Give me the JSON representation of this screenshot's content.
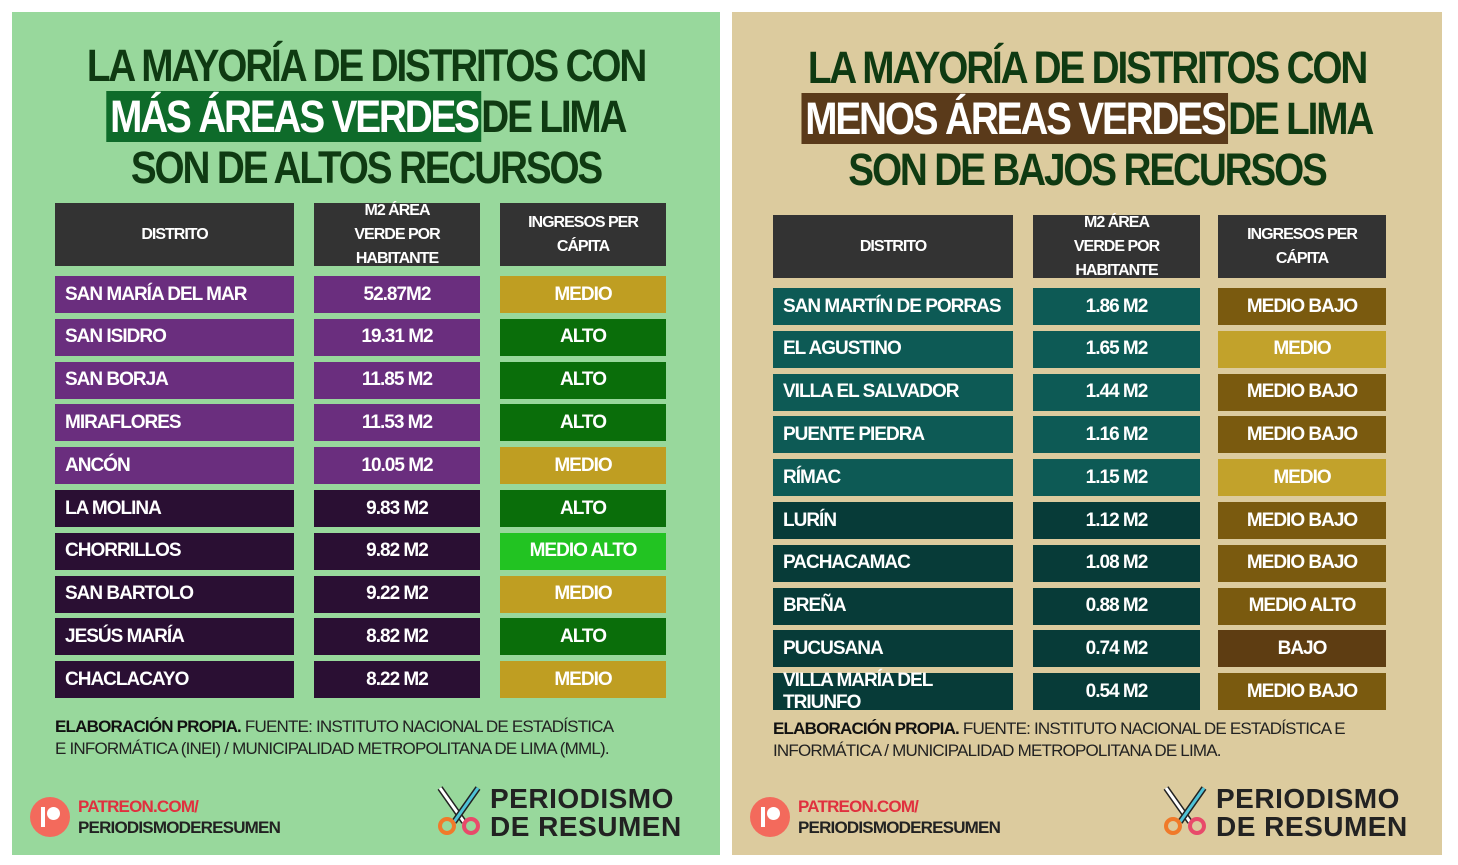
{
  "left": {
    "title_line1": "LA MAYORÍA DE DISTRITOS CON",
    "title_highlight": "MÁS ÁREAS VERDES",
    "title_line2_rest": "DE LIMA",
    "title_line3": "SON DE ALTOS RECURSOS",
    "headers": [
      "DISTRITO",
      "M2 ÁREA VERDE POR HABITANTE",
      "INGRESOS PER CÁPITA"
    ],
    "rows": [
      {
        "distrito": "SAN MARÍA DEL MAR",
        "m2": "52.87M2",
        "ingreso": "MEDIO"
      },
      {
        "distrito": "SAN ISIDRO",
        "m2": "19.31 M2",
        "ingreso": "ALTO"
      },
      {
        "distrito": "SAN BORJA",
        "m2": "11.85 M2",
        "ingreso": "ALTO"
      },
      {
        "distrito": "MIRAFLORES",
        "m2": "11.53 M2",
        "ingreso": "ALTO"
      },
      {
        "distrito": "ANCÓN",
        "m2": "10.05 M2",
        "ingreso": "MEDIO"
      },
      {
        "distrito": "LA MOLINA",
        "m2": "9.83 M2",
        "ingreso": "ALTO"
      },
      {
        "distrito": "CHORRILLOS",
        "m2": "9.82 M2",
        "ingreso": "MEDIO ALTO"
      },
      {
        "distrito": "SAN BARTOLO",
        "m2": "9.22 M2",
        "ingreso": "MEDIO"
      },
      {
        "distrito": "JESÚS MARÍA",
        "m2": "8.82 M2",
        "ingreso": "ALTO"
      },
      {
        "distrito": "CHACLACAYO",
        "m2": "8.22 M2",
        "ingreso": "MEDIO"
      }
    ],
    "note_bold": "ELABORACIÓN PROPIA.",
    "note_line1": "FUENTE: INSTITUTO NACIONAL DE ESTADÍSTICA",
    "note_line2": "E INFORMÁTICA (INEI) / MUNICIPALIDAD METROPOLITANA DE LIMA (MML).",
    "patreon_line1": "PATREON.COM/",
    "patreon_line2": "PERIODISMODERESUMEN",
    "brand_line1": "PERIODISMO",
    "brand_line2": "DE RESUMEN"
  },
  "right": {
    "title_line1": "LA MAYORÍA DE DISTRITOS CON",
    "title_highlight": "MENOS ÁREAS VERDES",
    "title_line2_rest": "DE LIMA",
    "title_line3": "SON DE BAJOS RECURSOS",
    "headers": [
      "DISTRITO",
      "M2 ÁREA VERDE POR HABITANTE",
      "INGRESOS PER CÁPITA"
    ],
    "rows": [
      {
        "distrito": "SAN MARTÍN DE PORRAS",
        "m2": "1.86 M2",
        "ingreso": "MEDIO BAJO"
      },
      {
        "distrito": "EL AGUSTINO",
        "m2": "1.65 M2",
        "ingreso": "MEDIO"
      },
      {
        "distrito": "VILLA EL SALVADOR",
        "m2": "1.44 M2",
        "ingreso": "MEDIO BAJO"
      },
      {
        "distrito": "PUENTE PIEDRA",
        "m2": "1.16 M2",
        "ingreso": "MEDIO BAJO"
      },
      {
        "distrito": "RÍMAC",
        "m2": "1.15 M2",
        "ingreso": "MEDIO"
      },
      {
        "distrito": "LURÍN",
        "m2": "1.12 M2",
        "ingreso": "MEDIO BAJO"
      },
      {
        "distrito": "PACHACAMAC",
        "m2": "1.08 M2",
        "ingreso": "MEDIO BAJO"
      },
      {
        "distrito": "BREÑA",
        "m2": "0.88 M2",
        "ingreso": "MEDIO ALTO"
      },
      {
        "distrito": "PUCUSANA",
        "m2": "0.74 M2",
        "ingreso": "BAJO"
      },
      {
        "distrito": "VILLA MARÍA DEL TRIUNFO",
        "m2": "0.54 M2",
        "ingreso": "MEDIO BAJO"
      }
    ],
    "note_bold": "ELABORACIÓN PROPIA.",
    "note_line1": "FUENTE: INSTITUTO NACIONAL DE ESTADÍSTICA E",
    "note_line2": "INFORMÁTICA / MUNICIPALIDAD METROPOLITANA DE LIMA.",
    "patreon_line1": "PATREON.COM/",
    "patreon_line2": "PERIODISMODERESUMEN",
    "brand_line1": "PERIODISMO",
    "brand_line2": "DE RESUMEN"
  },
  "colors": {
    "left_bg": "#98d89c",
    "right_bg": "#dccb9e",
    "title": "#0f3a12",
    "left_row_light": "#6a2e7e",
    "left_row_dark": "#2a0f33",
    "right_row_light": "#0d5a55",
    "right_row_dark": "#073b38",
    "left_income": {
      "MEDIO": "#bf9e22",
      "ALTO": "#0a6e0a",
      "MEDIO ALTO": "#22c322"
    },
    "right_income": {
      "MEDIO BAJO": "#7a5a0f",
      "MEDIO": "#c2a22b",
      "MEDIO ALTO": "#7a5a0f",
      "BAJO": "#5e3d12"
    }
  }
}
